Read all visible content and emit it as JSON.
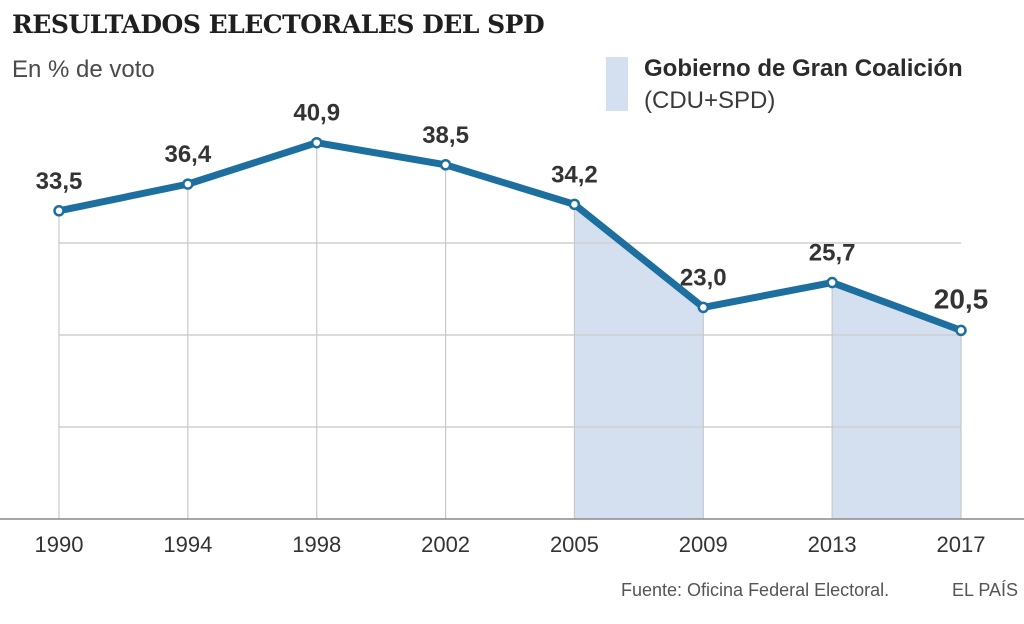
{
  "chart_data": {
    "type": "line",
    "title": "RESULTADOS ELECTORALES DEL SPD",
    "subtitle": "En % de voto",
    "categories": [
      "1990",
      "1994",
      "1998",
      "2002",
      "2005",
      "2009",
      "2013",
      "2017"
    ],
    "values": [
      33.5,
      36.4,
      40.9,
      38.5,
      34.2,
      23.0,
      25.7,
      20.5
    ],
    "value_labels": [
      "33,5",
      "36,4",
      "40,9",
      "38,5",
      "34,2",
      "23,0",
      "25,7",
      "20,5"
    ],
    "ylim": [
      0,
      40
    ],
    "grid": true,
    "line_color": "#1d6fa0",
    "highlight_color": "#d4dff0",
    "highlight_periods": [
      [
        "2005",
        "2009"
      ],
      [
        "2013",
        "2017"
      ]
    ],
    "legend": {
      "title": "Gobierno de Gran Coalición",
      "subtitle": "(CDU+SPD)",
      "position": "top-right"
    }
  },
  "footer": {
    "source": "Fuente: Oficina Federal Electoral.",
    "brand": "EL PAÍS"
  }
}
